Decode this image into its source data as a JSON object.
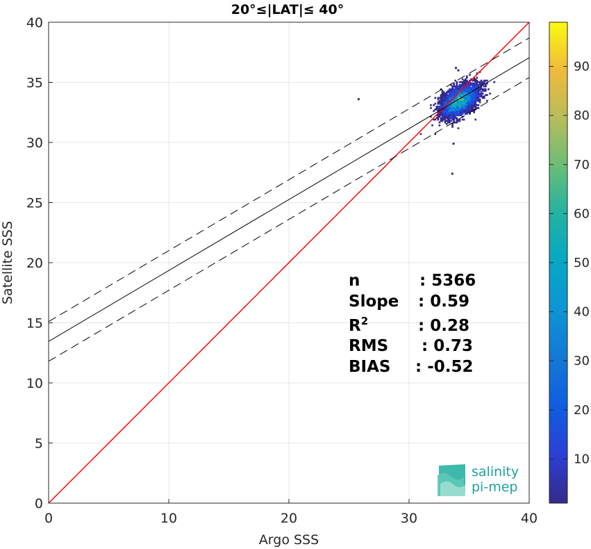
{
  "chart_data": {
    "type": "heatmap",
    "title": "20°≤|LAT|≤ 40°",
    "xlabel": "Argo SSS",
    "ylabel": "Satellite SSS",
    "xlim": [
      0,
      40
    ],
    "ylim": [
      0,
      40
    ],
    "xticks": [
      "0",
      "10",
      "20",
      "30",
      "40"
    ],
    "yticks": [
      "0",
      "5",
      "10",
      "15",
      "20",
      "25",
      "30",
      "35",
      "40"
    ],
    "grid": true,
    "colorbar": {
      "range": [
        1,
        99
      ],
      "ticks": [
        "10",
        "20",
        "30",
        "40",
        "50",
        "60",
        "70",
        "80",
        "90"
      ],
      "colormap": "parula"
    },
    "lines": [
      {
        "name": "identity",
        "style": "solid",
        "color": "#ff0000",
        "intercept": 0,
        "slope": 1
      },
      {
        "name": "regression",
        "style": "solid",
        "color": "#000000",
        "intercept": 13.45,
        "slope": 0.59
      },
      {
        "name": "regression-upper",
        "style": "dashed",
        "color": "#000000",
        "intercept": 15.1,
        "slope": 0.59
      },
      {
        "name": "regression-lower",
        "style": "dashed",
        "color": "#000000",
        "intercept": 11.8,
        "slope": 0.59
      }
    ],
    "density_center": [
      34.2,
      33.5
    ],
    "outliers": [
      [
        25.8,
        33.6
      ],
      [
        33.6,
        27.4
      ],
      [
        33.9,
        36.2
      ],
      [
        34.1,
        36.0
      ],
      [
        33.7,
        29.9
      ]
    ],
    "stats": {
      "rows": [
        {
          "key": "n",
          "value": ": 5366"
        },
        {
          "key": "Slope",
          "value": ": 0.59"
        },
        {
          "key": "R",
          "sup": "2",
          "value": ": 0.28"
        },
        {
          "key": "RMS",
          "value": ": 0.73"
        },
        {
          "key": "BIAS",
          "value": ": -0.52"
        }
      ]
    }
  },
  "logo": {
    "line1": "salinity",
    "line2": "pi-mep"
  }
}
